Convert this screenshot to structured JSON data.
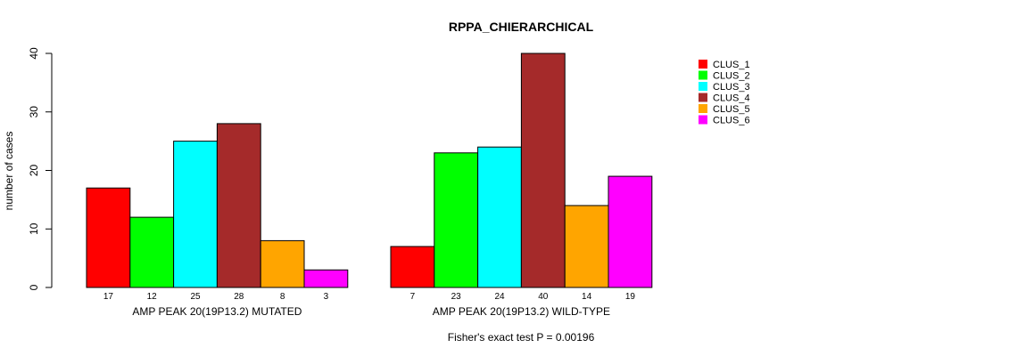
{
  "chart_data": {
    "type": "bar",
    "title": "RPPA_CHIERARCHICAL",
    "ylabel": "number of cases",
    "ylim": [
      0,
      40
    ],
    "yticks": [
      0,
      10,
      20,
      30,
      40
    ],
    "groups": [
      "AMP PEAK 20(19P13.2) MUTATED",
      "AMP PEAK 20(19P13.2) WILD-TYPE"
    ],
    "series": [
      {
        "name": "CLUS_1",
        "color": "#ff0000",
        "values": [
          17,
          7
        ]
      },
      {
        "name": "CLUS_2",
        "color": "#00ff00",
        "values": [
          12,
          23
        ]
      },
      {
        "name": "CLUS_3",
        "color": "#00ffff",
        "values": [
          25,
          24
        ]
      },
      {
        "name": "CLUS_4",
        "color": "#a52a2a",
        "values": [
          28,
          40
        ]
      },
      {
        "name": "CLUS_5",
        "color": "#ffa500",
        "values": [
          8,
          14
        ]
      },
      {
        "name": "CLUS_6",
        "color": "#ff00ff",
        "values": [
          3,
          19
        ]
      }
    ],
    "footnote": "Fisher's exact test P = 0.00196",
    "legend_position": "top-right"
  }
}
